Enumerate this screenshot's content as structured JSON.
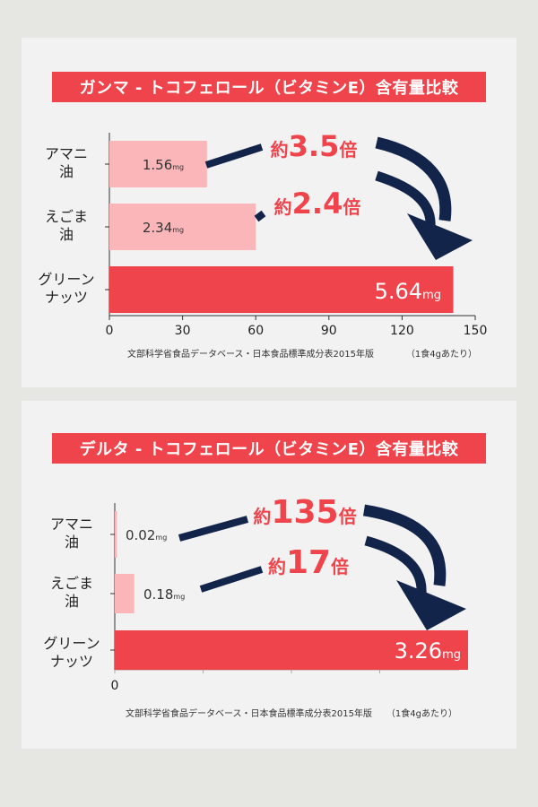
{
  "colors": {
    "page": "#e6e6e3",
    "panel": "#f2f2f2",
    "accent": "#f0444c",
    "light_bar": "#fbb6ba",
    "arrow": "#13244a"
  },
  "chart_data": [
    {
      "type": "bar",
      "orientation": "horizontal",
      "title": "ガンマ - トコフェロール（ビタミンE）含有量比較",
      "categories": [
        [
          "アマニ",
          "油"
        ],
        [
          "えごま",
          "油"
        ],
        [
          "グリーン",
          "ナッツ"
        ]
      ],
      "values": [
        1.56,
        2.34,
        5.64
      ],
      "bar_lengths": [
        40,
        60,
        141
      ],
      "value_labels": [
        "1.56",
        "2.34",
        "5.64"
      ],
      "unit": "mg",
      "xticks": [
        "0",
        "30",
        "60",
        "90",
        "120",
        "150"
      ],
      "xlim": [
        0,
        150
      ],
      "source": "文部科学省食品データベース・日本食品標準成分表2015年版",
      "note": "（1食4gあたり）",
      "ratios": [
        {
          "prefix": "約",
          "value": "3.5",
          "suffix": "倍"
        },
        {
          "prefix": "約",
          "value": "2.4",
          "suffix": "倍"
        }
      ]
    },
    {
      "type": "bar",
      "orientation": "horizontal",
      "title": "デルタ - トコフェロール（ビタミンE）含有量比較",
      "categories": [
        [
          "アマニ",
          "油"
        ],
        [
          "えごま",
          "油"
        ],
        [
          "グリーン",
          "ナッツ"
        ]
      ],
      "values": [
        0.02,
        0.18,
        3.26
      ],
      "value_labels": [
        "0.02",
        "0.18",
        "3.26"
      ],
      "unit": "mg",
      "xticks": [
        "0"
      ],
      "source": "文部科学省食品データベース・日本食品標準成分表2015年版",
      "note": "（1食4gあたり）",
      "ratios": [
        {
          "prefix": "約",
          "value": "135",
          "suffix": "倍"
        },
        {
          "prefix": "約",
          "value": "17",
          "suffix": "倍"
        }
      ]
    }
  ]
}
